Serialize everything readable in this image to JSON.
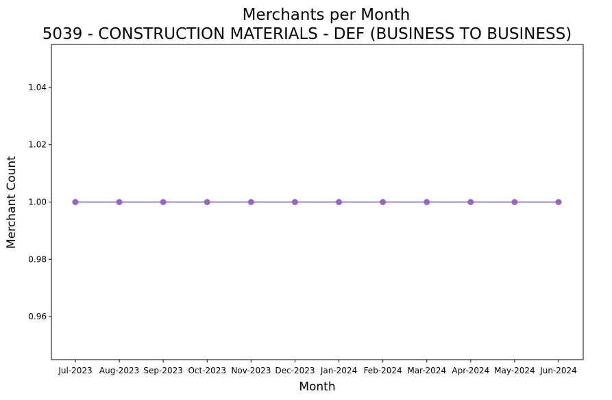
{
  "chart_data": {
    "type": "line",
    "title": "Merchants per Month",
    "subtitle": "5039 - CONSTRUCTION MATERIALS - DEF (BUSINESS TO BUSINESS)",
    "xlabel": "Month",
    "ylabel": "Merchant Count",
    "categories": [
      "Jul-2023",
      "Aug-2023",
      "Sep-2023",
      "Oct-2023",
      "Nov-2023",
      "Dec-2023",
      "Jan-2024",
      "Feb-2024",
      "Mar-2024",
      "Apr-2024",
      "May-2024",
      "Jun-2024"
    ],
    "series": [
      {
        "values": [
          1,
          1,
          1,
          1,
          1,
          1,
          1,
          1,
          1,
          1,
          1,
          1
        ],
        "color": "#9467bd",
        "marker": "circle"
      }
    ],
    "ylim": [
      0.945,
      1.055
    ],
    "yticks": [
      "0.96",
      "0.98",
      "1.00",
      "1.02",
      "1.04"
    ],
    "grid": false,
    "legend": false
  }
}
